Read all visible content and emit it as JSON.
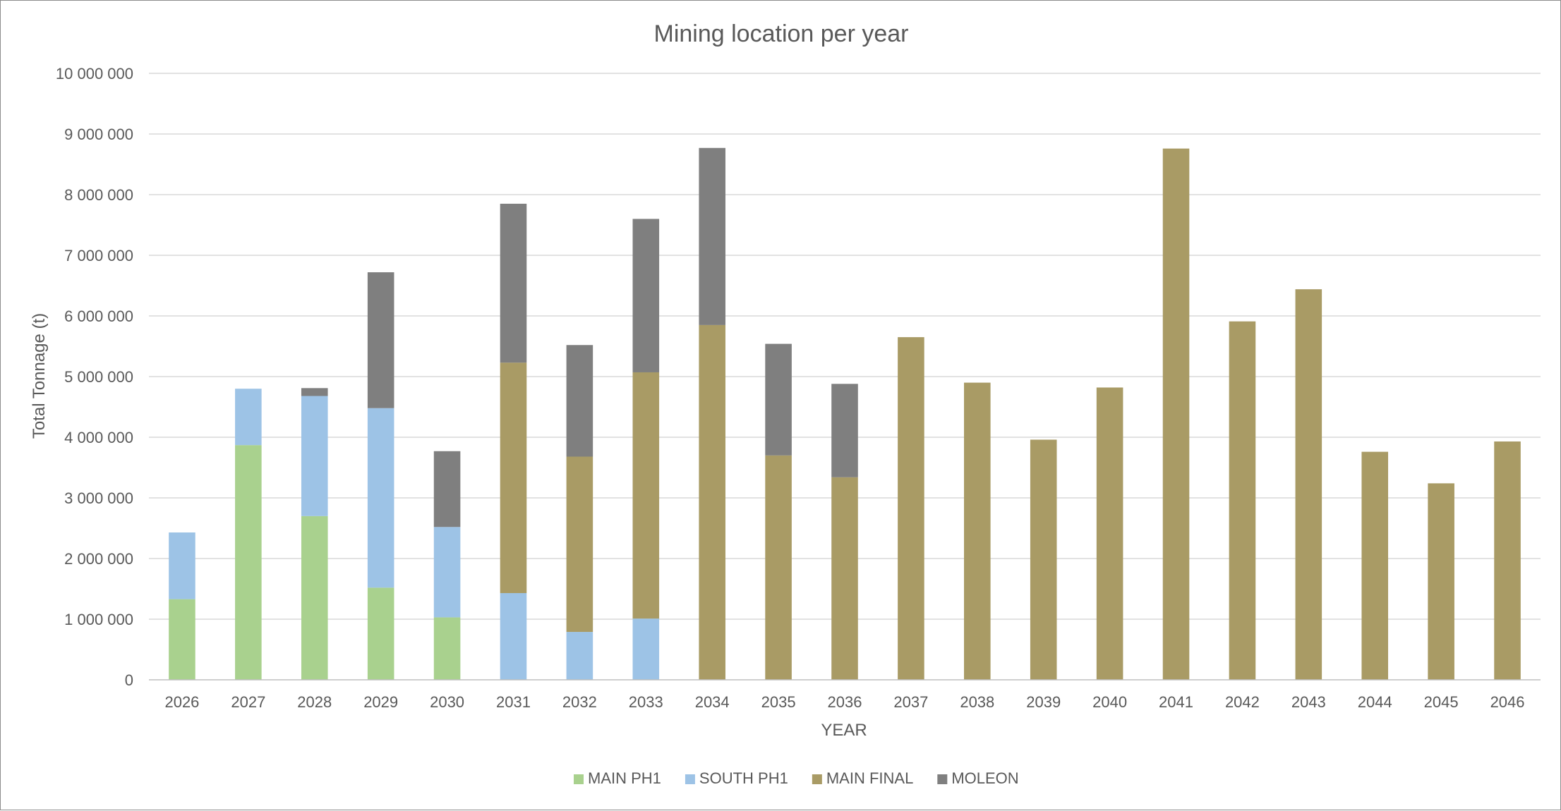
{
  "chart_data": {
    "type": "bar",
    "stacked": true,
    "title": "Mining location per year",
    "xlabel": "YEAR",
    "ylabel": "Total Tonnage (t)",
    "ylim": [
      0,
      10000000
    ],
    "yticks": [
      0,
      1000000,
      2000000,
      3000000,
      4000000,
      5000000,
      6000000,
      7000000,
      8000000,
      9000000,
      10000000
    ],
    "ytick_labels": [
      "0",
      "1 000 000",
      "2 000 000",
      "3 000 000",
      "4 000 000",
      "5 000 000",
      "6 000 000",
      "7 000 000",
      "8 000 000",
      "9 000 000",
      "10 000 000"
    ],
    "grid": true,
    "legend_position": "bottom",
    "categories": [
      "2026",
      "2027",
      "2028",
      "2029",
      "2030",
      "2031",
      "2032",
      "2033",
      "2034",
      "2035",
      "2036",
      "2037",
      "2038",
      "2039",
      "2040",
      "2041",
      "2042",
      "2043",
      "2044",
      "2045",
      "2046"
    ],
    "series": [
      {
        "name": "MAIN PH1",
        "color": "#a9d18e",
        "values": [
          1330000,
          3870000,
          2700000,
          1520000,
          1030000,
          0,
          0,
          0,
          0,
          0,
          0,
          0,
          0,
          0,
          0,
          0,
          0,
          0,
          0,
          0,
          0
        ]
      },
      {
        "name": "SOUTH PH1",
        "color": "#9dc3e6",
        "values": [
          1100000,
          930000,
          1980000,
          2960000,
          1490000,
          1430000,
          790000,
          1010000,
          0,
          0,
          0,
          0,
          0,
          0,
          0,
          0,
          0,
          0,
          0,
          0,
          0
        ]
      },
      {
        "name": "MAIN FINAL",
        "color": "#a99b65",
        "values": [
          0,
          0,
          0,
          0,
          0,
          3800000,
          2890000,
          4060000,
          5850000,
          3700000,
          3340000,
          5650000,
          4900000,
          3960000,
          4820000,
          8760000,
          5910000,
          6440000,
          3760000,
          3240000,
          3930000
        ]
      },
      {
        "name": "MOLEON",
        "color": "#7f7f7f",
        "values": [
          0,
          0,
          130000,
          2240000,
          1250000,
          2620000,
          1840000,
          2530000,
          2920000,
          1840000,
          1540000,
          0,
          0,
          0,
          0,
          0,
          0,
          0,
          0,
          0,
          0
        ]
      }
    ]
  }
}
